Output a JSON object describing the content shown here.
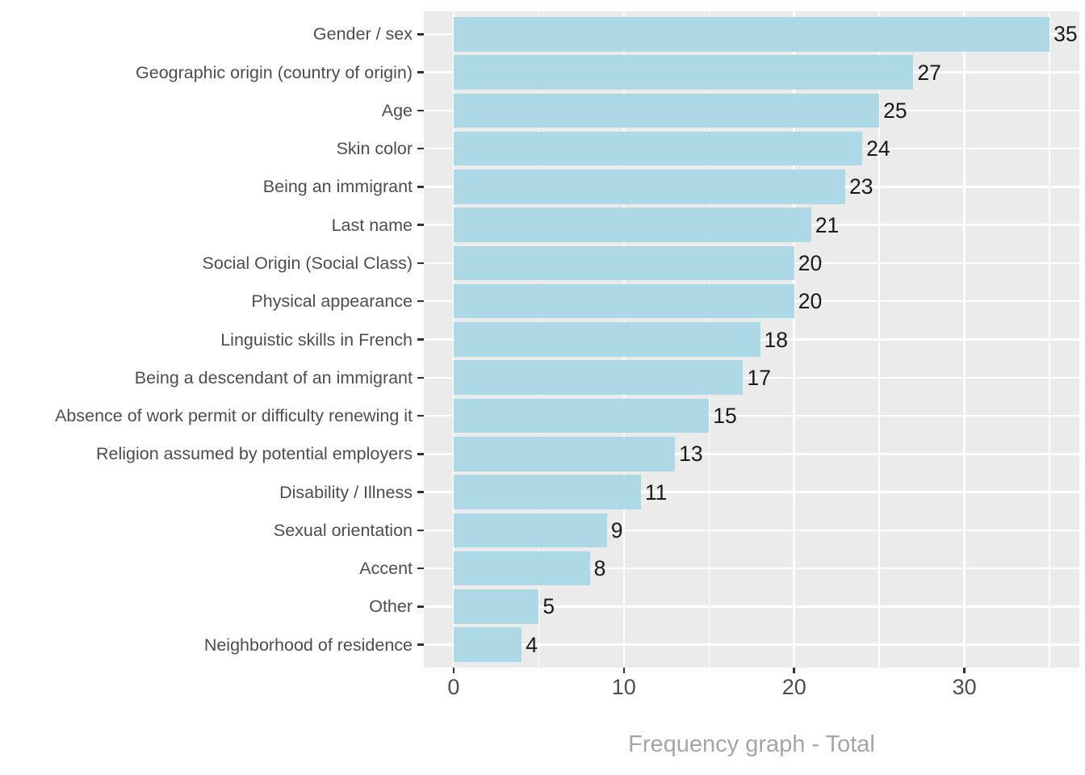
{
  "chart_data": {
    "type": "bar",
    "orientation": "horizontal",
    "title": "",
    "xlabel": "Frequency graph - Total",
    "ylabel": "",
    "categories": [
      "Gender / sex",
      "Geographic origin (country of origin)",
      "Age",
      "Skin color",
      "Being an immigrant",
      "Last name",
      "Social Origin (Social Class)",
      "Physical appearance",
      "Linguistic skills in French",
      "Being a descendant of an immigrant",
      "Absence of work permit or difficulty renewing it",
      "Religion assumed by potential employers",
      "Disability / Illness",
      "Sexual orientation",
      "Accent",
      "Other",
      "Neighborhood of residence"
    ],
    "values": [
      35,
      27,
      25,
      24,
      23,
      21,
      20,
      20,
      18,
      17,
      15,
      13,
      11,
      9,
      8,
      5,
      4
    ],
    "bar_value_labels": [
      "35",
      "27",
      "25",
      "24",
      "23",
      "21",
      "20",
      "20",
      "18",
      "17",
      "15",
      "13",
      "11",
      "9",
      "8",
      "5",
      "4"
    ],
    "x_tick_labels": [
      "0",
      "10",
      "20",
      "30"
    ],
    "x_major_breaks": [
      0,
      10,
      20,
      30
    ],
    "x_minor_breaks": [
      5,
      15,
      25,
      35
    ],
    "xlim": [
      -1.75,
      36.75
    ],
    "grid": "on",
    "legend_position": "none",
    "colors": {
      "bar": "#ADD8E6",
      "panel_background": "#EBEBEB",
      "gridline": "#FFFFFF",
      "axis_text": "#4D4D4D",
      "tick_mark": "#333333",
      "bar_label_text": "#1A1A1A",
      "axis_title_text": "#A5A5A5",
      "figure_background": "#FFFFFF"
    }
  }
}
